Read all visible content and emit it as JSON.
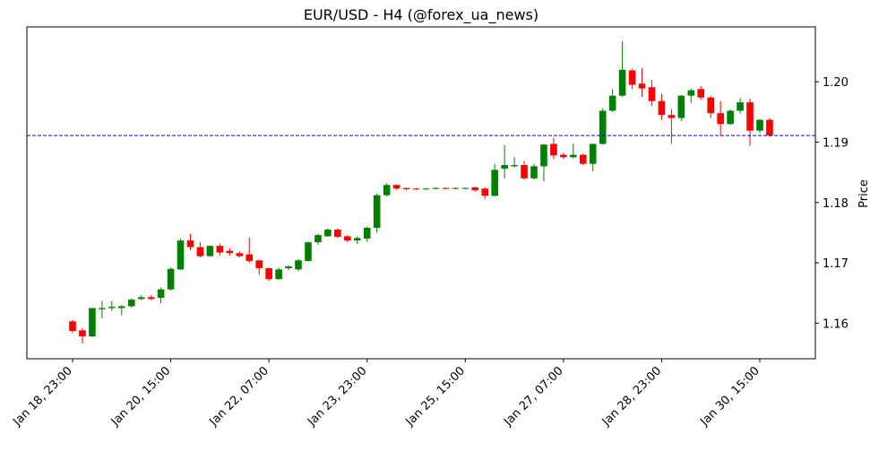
{
  "chart_data": {
    "type": "candlestick",
    "title": "EUR/USD - H4 (@forex_ua_news)",
    "y_label": "Price",
    "categories": [
      "Jan 18, 23:00",
      null,
      null,
      null,
      null,
      null,
      null,
      null,
      null,
      null,
      "Jan 20, 15:00",
      null,
      null,
      null,
      null,
      null,
      null,
      null,
      null,
      null,
      "Jan 22, 07:00",
      null,
      null,
      null,
      null,
      null,
      null,
      null,
      null,
      null,
      "Jan 23, 23:00",
      null,
      null,
      null,
      null,
      null,
      null,
      null,
      null,
      null,
      "Jan 25, 15:00",
      null,
      null,
      null,
      null,
      null,
      null,
      null,
      null,
      null,
      "Jan 27, 07:00",
      null,
      null,
      null,
      null,
      null,
      null,
      null,
      null,
      null,
      "Jan 28, 23:00",
      null,
      null,
      null,
      null,
      null,
      null,
      null,
      null,
      null,
      "Jan 30, 15:00",
      null
    ],
    "open": [
      1.1603,
      1.1588,
      1.1578,
      1.1623,
      1.1625,
      1.1625,
      1.1628,
      1.164,
      1.1643,
      1.1642,
      1.1656,
      1.1689,
      1.1737,
      1.1726,
      1.1711,
      1.1728,
      1.172,
      1.1716,
      1.1714,
      1.1704,
      1.1691,
      1.1673,
      1.1691,
      1.1689,
      1.1703,
      1.1734,
      1.1744,
      1.1755,
      1.1744,
      1.1737,
      1.174,
      1.1758,
      1.1812,
      1.1829,
      1.1824,
      1.1823,
      1.1822,
      1.1823,
      1.1824,
      1.1823,
      1.1823,
      1.1825,
      1.1823,
      1.1811,
      1.1856,
      1.186,
      1.1862,
      1.184,
      1.186,
      1.1897,
      1.1879,
      1.1875,
      1.1879,
      1.1864,
      1.1897,
      1.1952,
      1.1977,
      1.2019,
      1.1997,
      1.1991,
      1.1968,
      1.1945,
      1.194,
      1.1977,
      1.1988,
      1.1974,
      1.1948,
      1.193,
      1.1952,
      1.1966,
      1.1919,
      1.1937
    ],
    "high": [
      1.1605,
      1.1592,
      1.1625,
      1.1637,
      1.1637,
      1.163,
      1.1641,
      1.1646,
      1.1646,
      1.1659,
      1.1692,
      1.174,
      1.1748,
      1.1734,
      1.1729,
      1.1732,
      1.1724,
      1.1719,
      1.1742,
      1.1705,
      1.1692,
      1.1692,
      1.1696,
      1.1706,
      1.1735,
      1.1748,
      1.1757,
      1.1757,
      1.1746,
      1.1744,
      1.176,
      1.1815,
      1.1832,
      1.183,
      1.1824,
      1.1824,
      1.1824,
      1.1825,
      1.1825,
      1.1825,
      1.1825,
      1.1826,
      1.1825,
      1.1864,
      1.1895,
      1.1875,
      1.1869,
      1.1864,
      1.1897,
      1.1907,
      1.1882,
      1.1898,
      1.1881,
      1.1898,
      1.1956,
      1.1988,
      1.2067,
      1.2022,
      1.2023,
      1.2003,
      1.198,
      1.1955,
      1.1978,
      1.1989,
      1.1993,
      1.1976,
      1.1968,
      1.1954,
      1.1973,
      1.1972,
      1.1938,
      1.194
    ],
    "low": [
      1.1584,
      1.1566,
      1.1577,
      1.1608,
      1.162,
      1.1613,
      1.1626,
      1.1638,
      1.1638,
      1.1633,
      1.1654,
      1.1688,
      1.1721,
      1.1709,
      1.171,
      1.1712,
      1.1712,
      1.1709,
      1.17,
      1.168,
      1.167,
      1.1672,
      1.1688,
      1.1686,
      1.1702,
      1.173,
      1.1743,
      1.1741,
      1.1734,
      1.1731,
      1.1735,
      1.175,
      1.181,
      1.1821,
      1.182,
      1.1821,
      1.1821,
      1.1822,
      1.1822,
      1.1822,
      1.1822,
      1.1818,
      1.1806,
      1.181,
      1.184,
      1.1858,
      1.1838,
      1.1838,
      1.1835,
      1.1872,
      1.1872,
      1.1873,
      1.1862,
      1.1852,
      1.1896,
      1.195,
      1.1975,
      1.1988,
      1.1975,
      1.196,
      1.1937,
      1.1897,
      1.1935,
      1.1965,
      1.197,
      1.194,
      1.191,
      1.1929,
      1.1948,
      1.1894,
      1.1915,
      1.1909
    ],
    "close": [
      1.1587,
      1.1578,
      1.1625,
      1.1625,
      1.1627,
      1.1628,
      1.1639,
      1.1643,
      1.164,
      1.1656,
      1.169,
      1.1737,
      1.1726,
      1.1711,
      1.1728,
      1.1717,
      1.1716,
      1.1711,
      1.1703,
      1.1691,
      1.1673,
      1.1689,
      1.1694,
      1.1704,
      1.1734,
      1.1746,
      1.1755,
      1.1743,
      1.1737,
      1.1741,
      1.1758,
      1.1812,
      1.1829,
      1.1823,
      1.1822,
      1.1822,
      1.1823,
      1.1824,
      1.1823,
      1.1824,
      1.1824,
      1.182,
      1.1811,
      1.1854,
      1.1862,
      1.1862,
      1.184,
      1.186,
      1.1896,
      1.1878,
      1.1875,
      1.1879,
      1.1864,
      1.1897,
      1.1952,
      1.1977,
      1.202,
      1.1995,
      1.1989,
      1.1968,
      1.1945,
      1.194,
      1.1977,
      1.1986,
      1.1974,
      1.1948,
      1.193,
      1.1952,
      1.1966,
      1.1919,
      1.1937,
      1.1911
    ],
    "up_color": "#008000",
    "down_color": "#ff0000",
    "hline": {
      "value": 1.1911,
      "color": "#0000ff"
    },
    "ylim": [
      1.1541,
      1.2091
    ],
    "yticks": [
      1.16,
      1.17,
      1.18,
      1.19,
      {
        "value": 1.2,
        "label": "1.20"
      }
    ]
  }
}
